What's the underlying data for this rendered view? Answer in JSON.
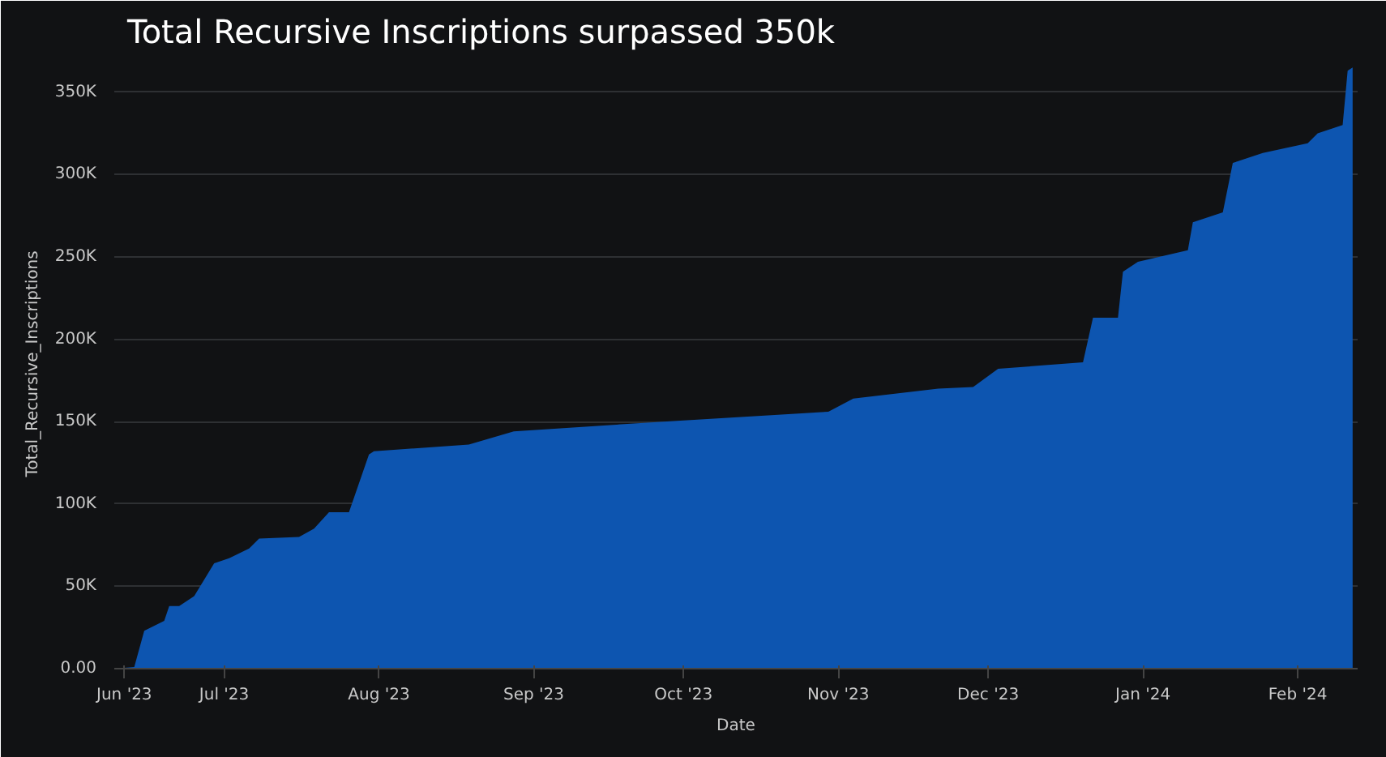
{
  "chart_data": {
    "type": "area",
    "title": "Total Recursive Inscriptions surpassed 350k",
    "xlabel": "Date",
    "ylabel": "Total_Recursive_Inscriptions",
    "x": [
      "2023-06-09",
      "2023-06-13",
      "2023-06-15",
      "2023-06-19",
      "2023-06-20",
      "2023-06-22",
      "2023-06-25",
      "2023-06-29",
      "2023-07-02",
      "2023-07-04",
      "2023-07-06",
      "2023-07-08",
      "2023-07-16",
      "2023-07-19",
      "2023-07-22",
      "2023-07-26",
      "2023-07-30",
      "2023-07-31",
      "2023-08-19",
      "2023-08-28",
      "2023-09-27",
      "2023-10-30",
      "2023-11-04",
      "2023-11-21",
      "2023-11-28",
      "2023-12-03",
      "2023-12-20",
      "2023-12-22",
      "2023-12-27",
      "2023-12-28",
      "2023-12-31",
      "2024-01-10",
      "2024-01-11",
      "2024-01-17",
      "2024-01-19",
      "2024-01-25",
      "2024-02-03",
      "2024-02-05",
      "2024-02-10",
      "2024-02-11",
      "2024-02-12"
    ],
    "series": [
      {
        "color": "#0d55b0",
        "values": [
          0,
          1000,
          23000,
          29000,
          38000,
          38000,
          44000,
          64000,
          67000,
          70000,
          73000,
          79000,
          80000,
          85000,
          95000,
          95000,
          130000,
          132000,
          136000,
          144000,
          150000,
          156000,
          164000,
          170000,
          171000,
          182000,
          186000,
          213000,
          213000,
          241000,
          247000,
          254000,
          271000,
          277000,
          307000,
          313000,
          319000,
          325000,
          330000,
          363000,
          365000
        ]
      }
    ],
    "xlim": [
      "2023-06-09",
      "2024-02-13"
    ],
    "ylim": [
      0,
      370000
    ],
    "xticks": [
      {
        "value": "2023-06-11",
        "label": "Jun '23"
      },
      {
        "value": "2023-07-01",
        "label": "Jul '23"
      },
      {
        "value": "2023-08-01",
        "label": "Aug '23"
      },
      {
        "value": "2023-09-01",
        "label": "Sep '23"
      },
      {
        "value": "2023-10-01",
        "label": "Oct '23"
      },
      {
        "value": "2023-11-01",
        "label": "Nov '23"
      },
      {
        "value": "2023-12-01",
        "label": "Dec '23"
      },
      {
        "value": "2024-01-01",
        "label": "Jan '24"
      },
      {
        "value": "2024-02-01",
        "label": "Feb '24"
      }
    ],
    "yticks": [
      {
        "value": 0,
        "label": "0.00"
      },
      {
        "value": 50000,
        "label": "50K"
      },
      {
        "value": 100000,
        "label": "100K"
      },
      {
        "value": 150000,
        "label": "150K"
      },
      {
        "value": 200000,
        "label": "200K"
      },
      {
        "value": 250000,
        "label": "250K"
      },
      {
        "value": 300000,
        "label": "300K"
      },
      {
        "value": 350000,
        "label": "350K"
      }
    ],
    "grid": "y"
  }
}
